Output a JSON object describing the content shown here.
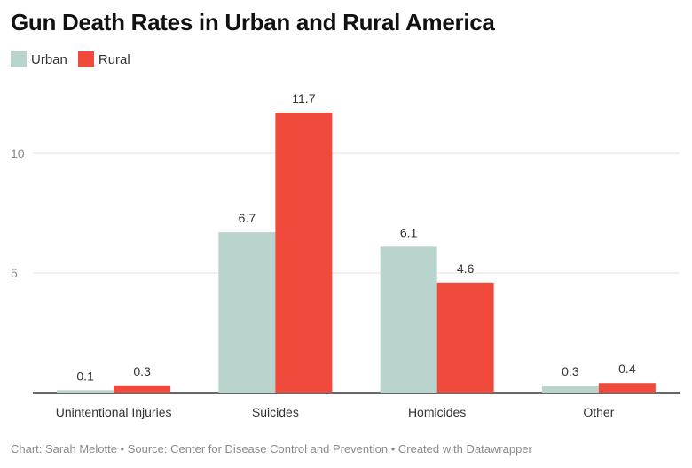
{
  "chart_data": {
    "type": "bar",
    "title": "Gun Death Rates in Urban and Rural America",
    "categories": [
      "Unintentional Injuries",
      "Suicides",
      "Homicides",
      "Other"
    ],
    "series": [
      {
        "name": "Urban",
        "color": "#b8d4cc",
        "values": [
          0.1,
          6.7,
          6.1,
          0.3
        ]
      },
      {
        "name": "Rural",
        "color": "#ef4a3c",
        "values": [
          0.3,
          11.7,
          4.6,
          0.4
        ]
      }
    ],
    "yticks": [
      5,
      10
    ],
    "ylim": [
      0,
      12
    ],
    "grid": true,
    "legend_position": "top-left",
    "xlabel": "",
    "ylabel": ""
  },
  "footer": {
    "text": "Chart: Sarah Melotte • Source: Center for Disease Control and Prevention • Created with Datawrapper"
  }
}
